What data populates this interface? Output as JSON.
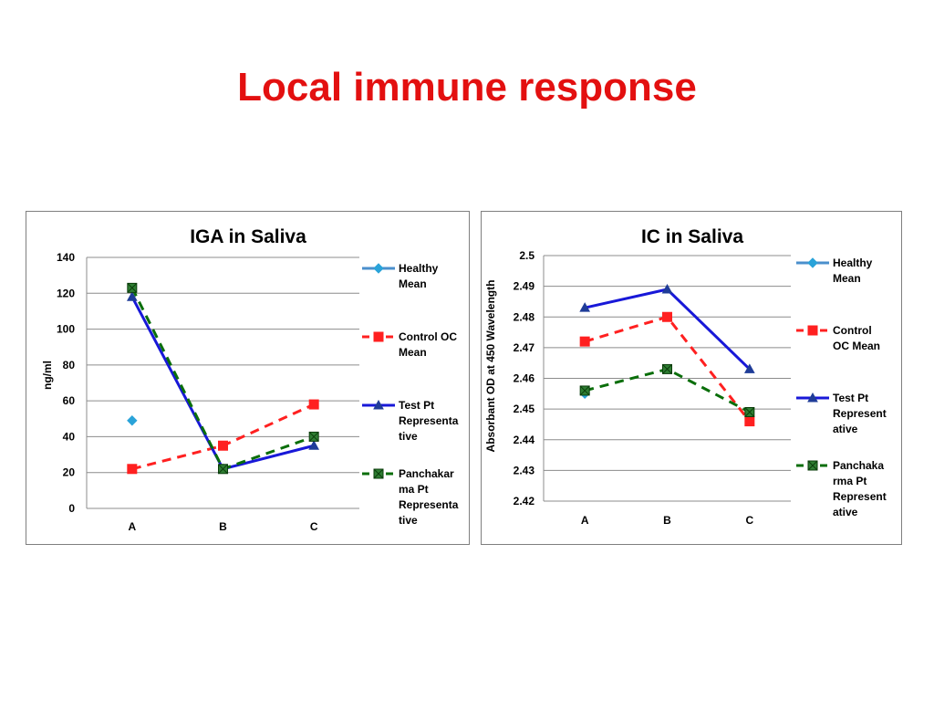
{
  "slide": {
    "title": "Local immune response"
  },
  "chart_data": [
    {
      "type": "line",
      "title": "IGA in Saliva",
      "xlabel": "",
      "ylabel": "ng/ml",
      "categories": [
        "A",
        "B",
        "C"
      ],
      "ylim": [
        0,
        140
      ],
      "ytick_labels": [
        "0",
        "20",
        "40",
        "60",
        "80",
        "100",
        "120",
        "140"
      ],
      "grid": true,
      "legend_position": "right",
      "series": [
        {
          "name": "Healthy Mean",
          "legend_lines": [
            "Healthy",
            "Mean"
          ],
          "values": [
            49,
            null,
            null
          ],
          "color": "#4a8fcc",
          "marker": "diamond",
          "dash": "solid",
          "marker_color": "#2aa3d9"
        },
        {
          "name": "Control OC Mean",
          "legend_lines": [
            "Control OC",
            "Mean"
          ],
          "values": [
            22,
            35,
            58
          ],
          "color": "#ff2020",
          "marker": "square",
          "dash": "dashed",
          "marker_color": "#ff2020"
        },
        {
          "name": "Test Pt Representative",
          "legend_lines": [
            "Test Pt",
            "Representa",
            "tive"
          ],
          "values": [
            118,
            22,
            35
          ],
          "color": "#1818d8",
          "marker": "triangle",
          "dash": "solid",
          "marker_color": "#1f3c98"
        },
        {
          "name": "Panchakarma Pt Representative",
          "legend_lines": [
            "Panchakar",
            "ma Pt",
            "Representa",
            "tive"
          ],
          "values": [
            123,
            22,
            40
          ],
          "color": "#0a6e0a",
          "marker": "xsquare",
          "dash": "dashed",
          "marker_color": "#2e7d32"
        }
      ]
    },
    {
      "type": "line",
      "title": "IC in Saliva",
      "xlabel": "",
      "ylabel": "Absorbant OD at 450 Wavelength",
      "categories": [
        "A",
        "B",
        "C"
      ],
      "ylim": [
        2.42,
        2.5
      ],
      "ytick_labels": [
        "2.42",
        "2.43",
        "2.44",
        "2.45",
        "2.46",
        "2.47",
        "2.48",
        "2.49",
        "2.5"
      ],
      "grid": true,
      "legend_position": "right",
      "series": [
        {
          "name": "Healthy Mean",
          "legend_lines": [
            "Healthy",
            "Mean"
          ],
          "values": [
            2.455,
            null,
            null
          ],
          "color": "#4a8fcc",
          "marker": "diamond",
          "dash": "solid",
          "marker_color": "#2aa3d9"
        },
        {
          "name": "Control OC Mean",
          "legend_lines": [
            "Control",
            "OC Mean"
          ],
          "values": [
            2.472,
            2.48,
            2.446
          ],
          "color": "#ff2020",
          "marker": "square",
          "dash": "dashed",
          "marker_color": "#ff2020"
        },
        {
          "name": "Test Pt Representative",
          "legend_lines": [
            "Test Pt",
            "Represent",
            "ative"
          ],
          "values": [
            2.483,
            2.489,
            2.463
          ],
          "color": "#1818d8",
          "marker": "triangle",
          "dash": "solid",
          "marker_color": "#1f3c98"
        },
        {
          "name": "Panchakarma Pt Representative",
          "legend_lines": [
            "Panchaka",
            "rma Pt",
            "Represent",
            "ative"
          ],
          "values": [
            2.456,
            2.463,
            2.449
          ],
          "color": "#0a6e0a",
          "marker": "xsquare",
          "dash": "dashed",
          "marker_color": "#2e7d32"
        }
      ]
    }
  ]
}
